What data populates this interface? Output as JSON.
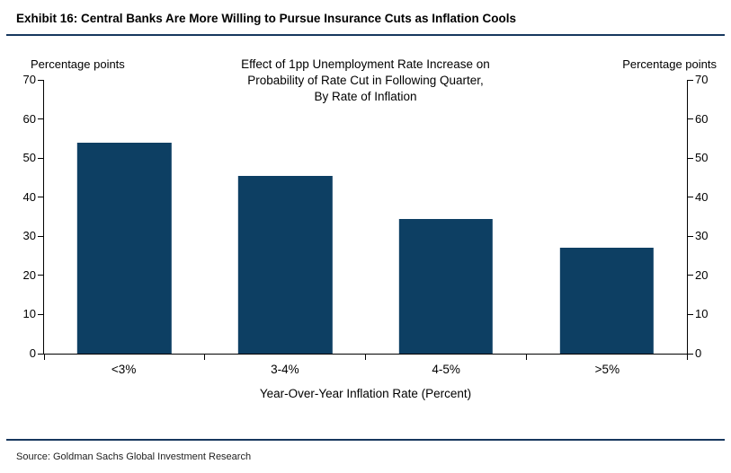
{
  "header": {
    "title": "Exhibit 16: Central Banks Are More Willing to Pursue Insurance Cuts as Inflation Cools"
  },
  "footer": {
    "source": "Source: Goldman Sachs Global Investment Research"
  },
  "chart_data": {
    "type": "bar",
    "title": "Effect of 1pp Unemployment Rate Increase on Probability of Rate Cut in Following Quarter, By Rate of Inflation",
    "title_lines": [
      "Effect of 1pp Unemployment Rate Increase on",
      "Probability of Rate Cut in Following Quarter,",
      "By Rate of Inflation"
    ],
    "categories": [
      "<3%",
      "3-4%",
      "4-5%",
      ">5%"
    ],
    "values": [
      54,
      45.5,
      34.5,
      27
    ],
    "xlabel": "Year-Over-Year Inflation Rate (Percent)",
    "left_axis_title": "Percentage points",
    "right_axis_title": "Percentage points",
    "ylim": [
      0,
      70
    ],
    "yticks": [
      0,
      10,
      20,
      30,
      40,
      50,
      60,
      70
    ],
    "bar_color": "#0d3f63",
    "accent_rule_color": "#17375e",
    "grid": false,
    "legend": "none"
  }
}
